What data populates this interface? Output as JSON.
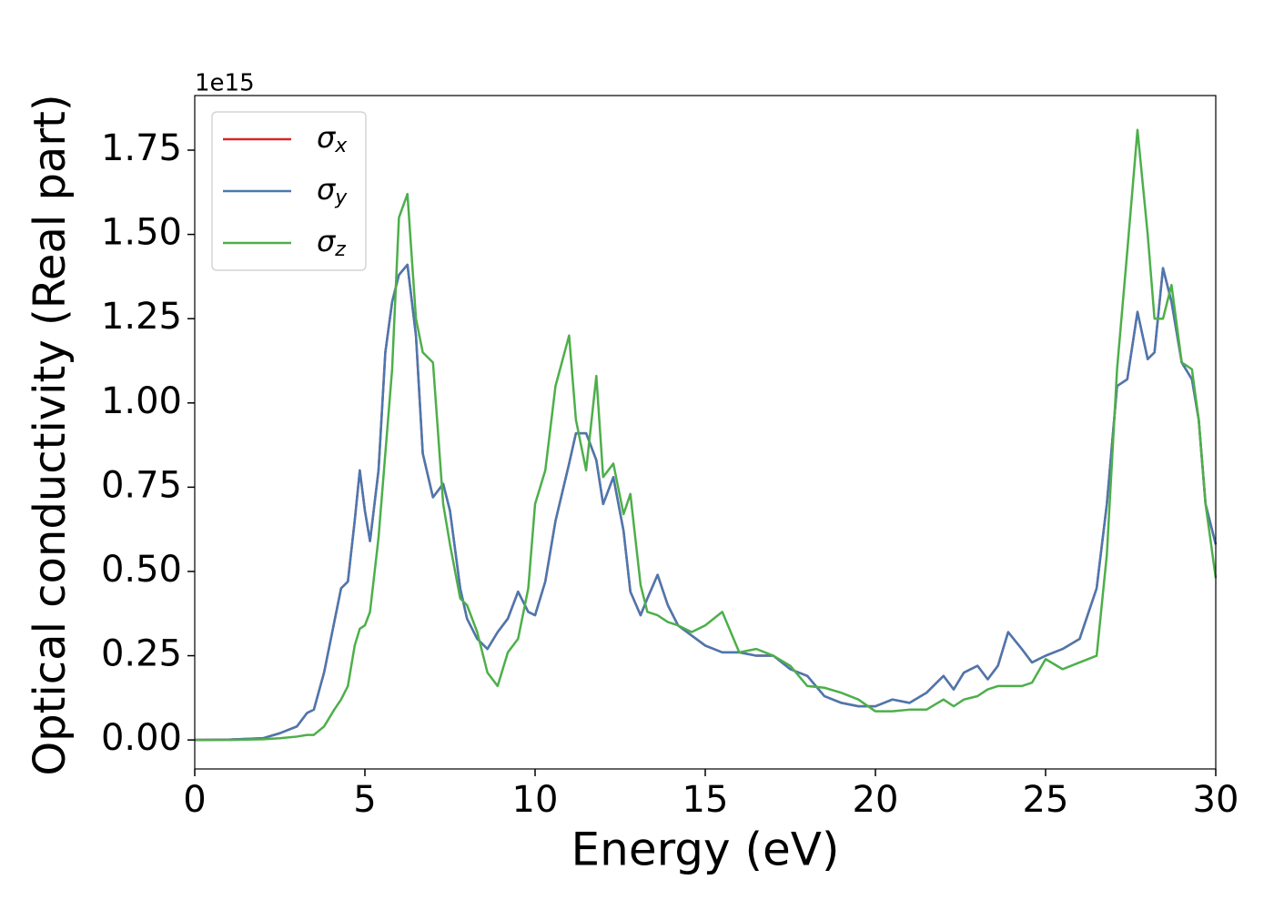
{
  "chart_data": {
    "type": "line",
    "xlabel": "Energy (eV)",
    "ylabel": "Optical conductivity (Real part)",
    "y_offset_text": "1e15",
    "xlim": [
      0,
      30
    ],
    "ylim": [
      -0.086,
      1.912
    ],
    "xticks": [
      0,
      5,
      10,
      15,
      20,
      25,
      30
    ],
    "yticks": [
      {
        "value": 0,
        "label": "0.00"
      },
      {
        "value": 0.25,
        "label": "0.25"
      },
      {
        "value": 0.5,
        "label": "0.50"
      },
      {
        "value": 0.75,
        "label": "0.75"
      },
      {
        "value": 1,
        "label": "1.00"
      },
      {
        "value": 1.25,
        "label": "1.25"
      },
      {
        "value": 1.5,
        "label": "1.50"
      },
      {
        "value": 1.75,
        "label": "1.75"
      }
    ],
    "legend": "upper left",
    "x": [
      0,
      1,
      2,
      2.5,
      3,
      3.3,
      3.5,
      3.8,
      4.1,
      4.3,
      4.5,
      4.7,
      4.85,
      5.0,
      5.15,
      5.4,
      5.6,
      5.8,
      6.0,
      6.25,
      6.5,
      6.7,
      7.0,
      7.3,
      7.5,
      7.8,
      8.0,
      8.3,
      8.6,
      8.9,
      9.2,
      9.5,
      9.8,
      10.0,
      10.3,
      10.6,
      11.0,
      11.2,
      11.5,
      11.8,
      12.0,
      12.3,
      12.6,
      12.8,
      13.1,
      13.3,
      13.6,
      13.9,
      14.2,
      14.6,
      15.0,
      15.5,
      16.0,
      16.5,
      17.0,
      17.5,
      18.0,
      18.5,
      19.0,
      19.5,
      20.0,
      20.5,
      21.0,
      21.5,
      22.0,
      22.3,
      22.6,
      23.0,
      23.3,
      23.6,
      23.9,
      24.3,
      24.6,
      25.0,
      25.5,
      26.0,
      26.5,
      26.8,
      27.1,
      27.4,
      27.7,
      28.0,
      28.2,
      28.45,
      28.7,
      29.0,
      29.3,
      29.5,
      29.7,
      30.0
    ],
    "series": [
      {
        "name": "σx",
        "color": "#d62728",
        "values": [
          0,
          0.001,
          0.005,
          0.02,
          0.04,
          0.08,
          0.09,
          0.2,
          0.35,
          0.45,
          0.47,
          0.65,
          0.8,
          0.68,
          0.59,
          0.8,
          1.15,
          1.3,
          1.38,
          1.41,
          1.2,
          0.85,
          0.72,
          0.76,
          0.68,
          0.45,
          0.36,
          0.3,
          0.27,
          0.32,
          0.36,
          0.44,
          0.38,
          0.37,
          0.47,
          0.65,
          0.82,
          0.91,
          0.91,
          0.83,
          0.7,
          0.78,
          0.62,
          0.44,
          0.37,
          0.42,
          0.49,
          0.4,
          0.34,
          0.31,
          0.28,
          0.26,
          0.26,
          0.25,
          0.25,
          0.21,
          0.19,
          0.13,
          0.11,
          0.1,
          0.1,
          0.12,
          0.11,
          0.14,
          0.19,
          0.15,
          0.2,
          0.22,
          0.18,
          0.22,
          0.32,
          0.27,
          0.23,
          0.25,
          0.27,
          0.3,
          0.45,
          0.7,
          1.05,
          1.07,
          1.27,
          1.13,
          1.15,
          1.4,
          1.3,
          1.12,
          1.07,
          0.95,
          0.7,
          0.58
        ]
      },
      {
        "name": "σy",
        "color": "#4a78b0",
        "values": [
          0,
          0.001,
          0.005,
          0.02,
          0.04,
          0.08,
          0.09,
          0.2,
          0.35,
          0.45,
          0.47,
          0.65,
          0.8,
          0.68,
          0.59,
          0.8,
          1.15,
          1.3,
          1.38,
          1.41,
          1.2,
          0.85,
          0.72,
          0.76,
          0.68,
          0.45,
          0.36,
          0.3,
          0.27,
          0.32,
          0.36,
          0.44,
          0.38,
          0.37,
          0.47,
          0.65,
          0.82,
          0.91,
          0.91,
          0.83,
          0.7,
          0.78,
          0.62,
          0.44,
          0.37,
          0.42,
          0.49,
          0.4,
          0.34,
          0.31,
          0.28,
          0.26,
          0.26,
          0.25,
          0.25,
          0.21,
          0.19,
          0.13,
          0.11,
          0.1,
          0.1,
          0.12,
          0.11,
          0.14,
          0.19,
          0.15,
          0.2,
          0.22,
          0.18,
          0.22,
          0.32,
          0.27,
          0.23,
          0.25,
          0.27,
          0.3,
          0.45,
          0.7,
          1.05,
          1.07,
          1.27,
          1.13,
          1.15,
          1.4,
          1.3,
          1.12,
          1.07,
          0.95,
          0.7,
          0.58
        ]
      },
      {
        "name": "σz",
        "color": "#4daf4a",
        "values": [
          0,
          0,
          0.002,
          0.005,
          0.01,
          0.015,
          0.015,
          0.04,
          0.09,
          0.12,
          0.16,
          0.28,
          0.33,
          0.34,
          0.38,
          0.6,
          0.85,
          1.1,
          1.55,
          1.62,
          1.25,
          1.15,
          1.12,
          0.7,
          0.58,
          0.42,
          0.4,
          0.32,
          0.2,
          0.16,
          0.26,
          0.3,
          0.45,
          0.7,
          0.8,
          1.05,
          1.2,
          0.95,
          0.8,
          1.08,
          0.78,
          0.82,
          0.67,
          0.73,
          0.46,
          0.38,
          0.37,
          0.35,
          0.34,
          0.32,
          0.34,
          0.38,
          0.26,
          0.27,
          0.25,
          0.22,
          0.16,
          0.155,
          0.14,
          0.12,
          0.085,
          0.085,
          0.09,
          0.09,
          0.12,
          0.1,
          0.12,
          0.13,
          0.15,
          0.16,
          0.16,
          0.16,
          0.17,
          0.24,
          0.21,
          0.23,
          0.25,
          0.55,
          1.1,
          1.45,
          1.81,
          1.5,
          1.25,
          1.25,
          1.35,
          1.12,
          1.1,
          0.95,
          0.7,
          0.48
        ]
      }
    ]
  }
}
